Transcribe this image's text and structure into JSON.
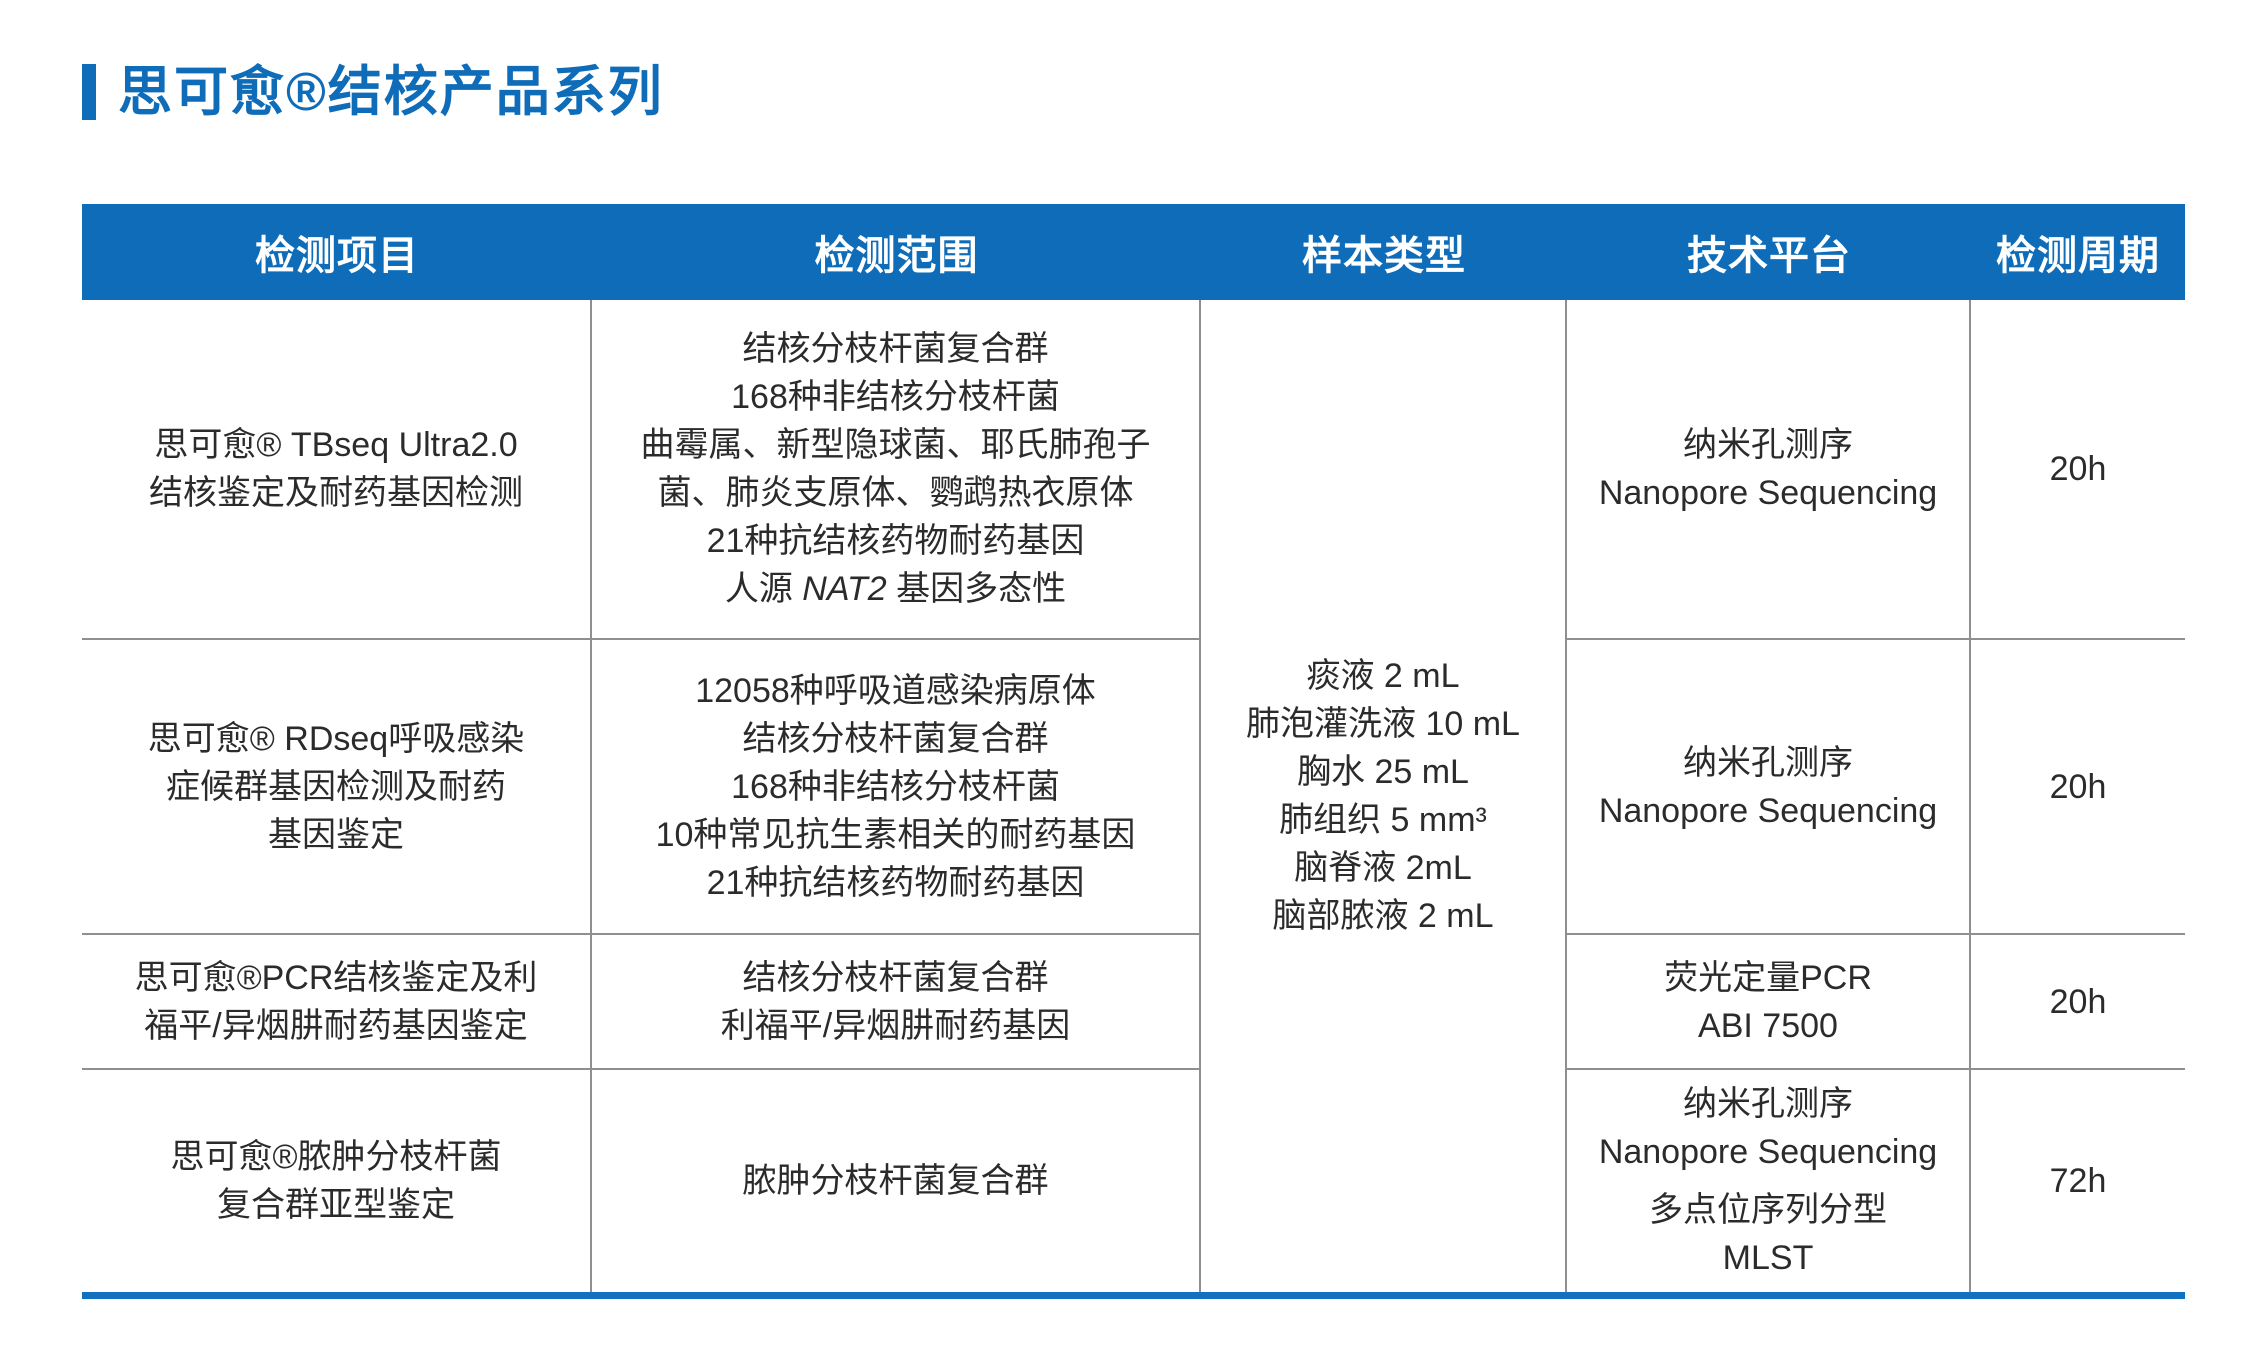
{
  "page": {
    "title": "思可愈®结核产品系列"
  },
  "colors": {
    "accent_blue": "#0e6cb8",
    "bottom_line_blue": "#1271be",
    "grid_gray": "#8f8f8f",
    "body_text": "#2b2b2b",
    "header_text": "#ffffff"
  },
  "table": {
    "headers": [
      "检测项目",
      "检测范围",
      "样本类型",
      "技术平台",
      "检测周期"
    ],
    "sample_type_lines": [
      "痰液 2 mL",
      "肺泡灌洗液 10 mL",
      "胸水 25 mL",
      "肺组织 5 mm³",
      "脑脊液 2mL",
      "脑部脓液 2 mL"
    ],
    "rows": [
      {
        "project": [
          "思可愈® TBseq Ultra2.0",
          "结核鉴定及耐药基因检测"
        ],
        "scope": [
          "结核分枝杆菌复合群",
          "168种非结核分枝杆菌",
          "曲霉属、新型隐球菌、耶氏肺孢子",
          "菌、肺炎支原体、鹦鹉热衣原体",
          "21种抗结核药物耐药基因"
        ],
        "scope_nat2": {
          "pre": "人源 ",
          "italic": "NAT2",
          "post": " 基因多态性"
        },
        "platform": [
          "纳米孔测序",
          "Nanopore Sequencing"
        ],
        "turnaround": "20h"
      },
      {
        "project": [
          "思可愈® RDseq呼吸感染",
          "症候群基因检测及耐药",
          "基因鉴定"
        ],
        "scope": [
          "12058种呼吸道感染病原体",
          "结核分枝杆菌复合群",
          "168种非结核分枝杆菌",
          "10种常见抗生素相关的耐药基因",
          "21种抗结核药物耐药基因"
        ],
        "platform": [
          "纳米孔测序",
          "Nanopore Sequencing"
        ],
        "turnaround": "20h"
      },
      {
        "project": [
          "思可愈®PCR结核鉴定及利",
          "福平/异烟肼耐药基因鉴定"
        ],
        "scope": [
          "结核分枝杆菌复合群",
          "利福平/异烟肼耐药基因"
        ],
        "platform": [
          "荧光定量PCR",
          "ABI 7500"
        ],
        "turnaround": "20h"
      },
      {
        "project": [
          "思可愈®脓肿分枝杆菌",
          "复合群亚型鉴定"
        ],
        "scope": [
          "脓肿分枝杆菌复合群"
        ],
        "platform": [
          "纳米孔测序",
          "Nanopore Sequencing"
        ],
        "platform_extra": [
          "多点位序列分型",
          "MLST"
        ],
        "turnaround": "72h"
      }
    ]
  }
}
